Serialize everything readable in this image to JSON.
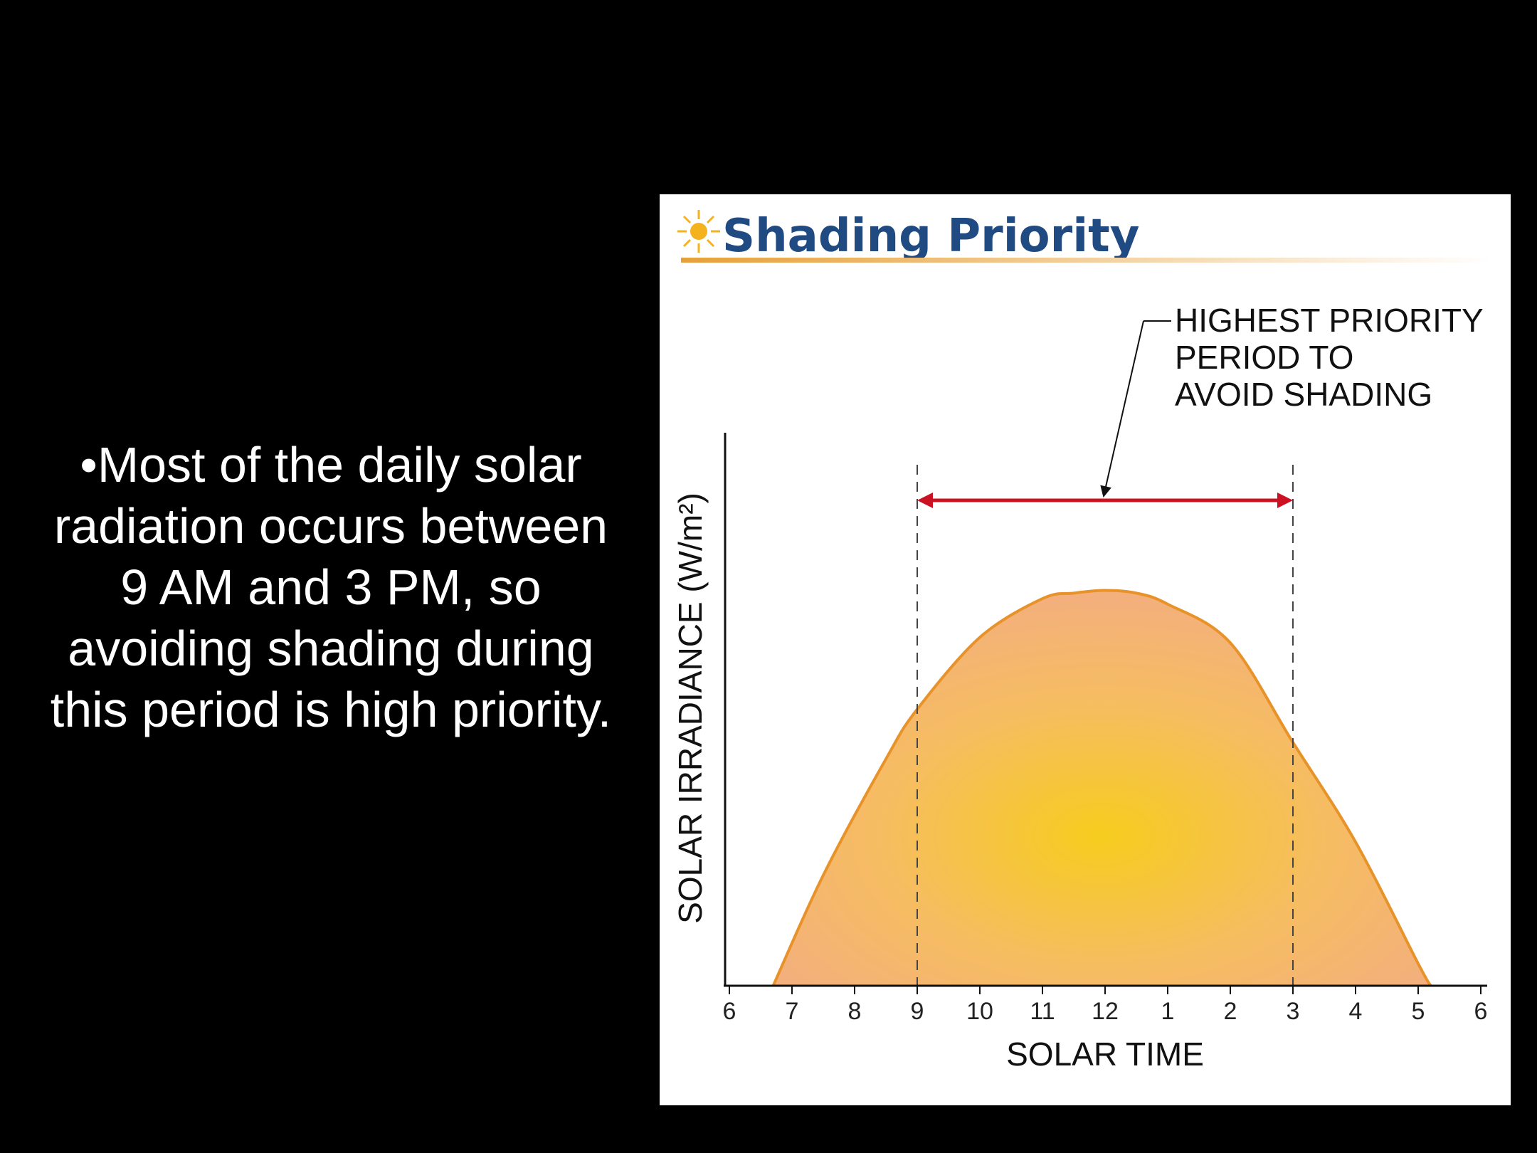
{
  "slide": {
    "bullet_lines": [
      "•Most of the daily solar",
      "radiation occurs between",
      "9 AM and 3 PM, so",
      "avoiding shading during",
      "this period is high priority."
    ]
  },
  "colors": {
    "background": "#000000",
    "title": "#1f4a82",
    "curve_stroke": "#e8922a",
    "fill_center": "#f7cc1e",
    "fill_edge": "#f3b07c",
    "arrow": "#cc1122"
  },
  "chart_data": {
    "type": "area",
    "title": "Shading Priority",
    "xlabel": "SOLAR TIME",
    "ylabel": "SOLAR IRRADIANCE (W/m²)",
    "x_ticks": [
      "6",
      "7",
      "8",
      "9",
      "10",
      "11",
      "12",
      "1",
      "2",
      "3",
      "4",
      "5",
      "6"
    ],
    "xlim": [
      6,
      18
    ],
    "ylim": [
      0,
      1
    ],
    "y_tick_labels_shown": false,
    "series": [
      {
        "x": [
          6.7,
          7.5,
          8.5,
          9,
          10,
          11,
          11.5,
          12,
          12.5,
          13,
          14,
          15,
          16,
          17,
          17.2
        ],
        "y": [
          0.0,
          0.2,
          0.41,
          0.5,
          0.63,
          0.7,
          0.71,
          0.715,
          0.71,
          0.69,
          0.62,
          0.44,
          0.26,
          0.04,
          0.0
        ]
      }
    ],
    "priority_range": {
      "start": 9,
      "end": 15
    },
    "annotation": [
      "HIGHEST PRIORITY",
      "PERIOD TO",
      "AVOID SHADING"
    ]
  }
}
